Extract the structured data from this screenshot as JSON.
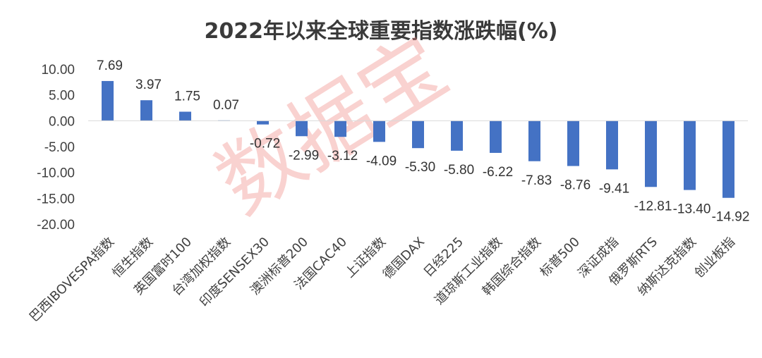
{
  "chart_data": {
    "type": "bar",
    "title": "2022年以来全球重要指数涨跌幅(%)",
    "categories": [
      "巴西IBOVESPA指数",
      "恒生指数",
      "英国富时100",
      "台湾加权指数",
      "印度SENSEX30",
      "澳洲标普200",
      "法国CAC40",
      "上证指数",
      "德国DAX",
      "日经225",
      "道琼斯工业指数",
      "韩国综合指数",
      "标普500",
      "深证成指",
      "俄罗斯RTS",
      "纳斯达克指数",
      "创业板指"
    ],
    "values": [
      7.69,
      3.97,
      1.75,
      0.07,
      -0.72,
      -2.99,
      -3.12,
      -4.09,
      -5.3,
      -5.8,
      -6.22,
      -7.83,
      -8.76,
      -9.41,
      -12.81,
      -13.4,
      -14.92
    ],
    "data_labels": [
      "7.69",
      "3.97",
      "1.75",
      "0.07",
      "-0.72",
      "-2.99",
      "-3.12",
      "-4.09",
      "-5.30",
      "-5.80",
      "-6.22",
      "-7.83",
      "-8.76",
      "-9.41",
      "-12.81",
      "-13.40",
      "-14.92"
    ],
    "yticks": [
      "10.00",
      "5.00",
      "0.00",
      "-5.00",
      "-10.00",
      "-15.00",
      "-20.00"
    ],
    "ytick_values": [
      10,
      5,
      0,
      -5,
      -10,
      -15,
      -20
    ],
    "ylim": [
      -20,
      10
    ],
    "xlabel": "",
    "ylabel": "",
    "grid": false,
    "bar_color": "#4472c4",
    "watermark": "数据宝",
    "watermark_color": "#f08a85"
  }
}
